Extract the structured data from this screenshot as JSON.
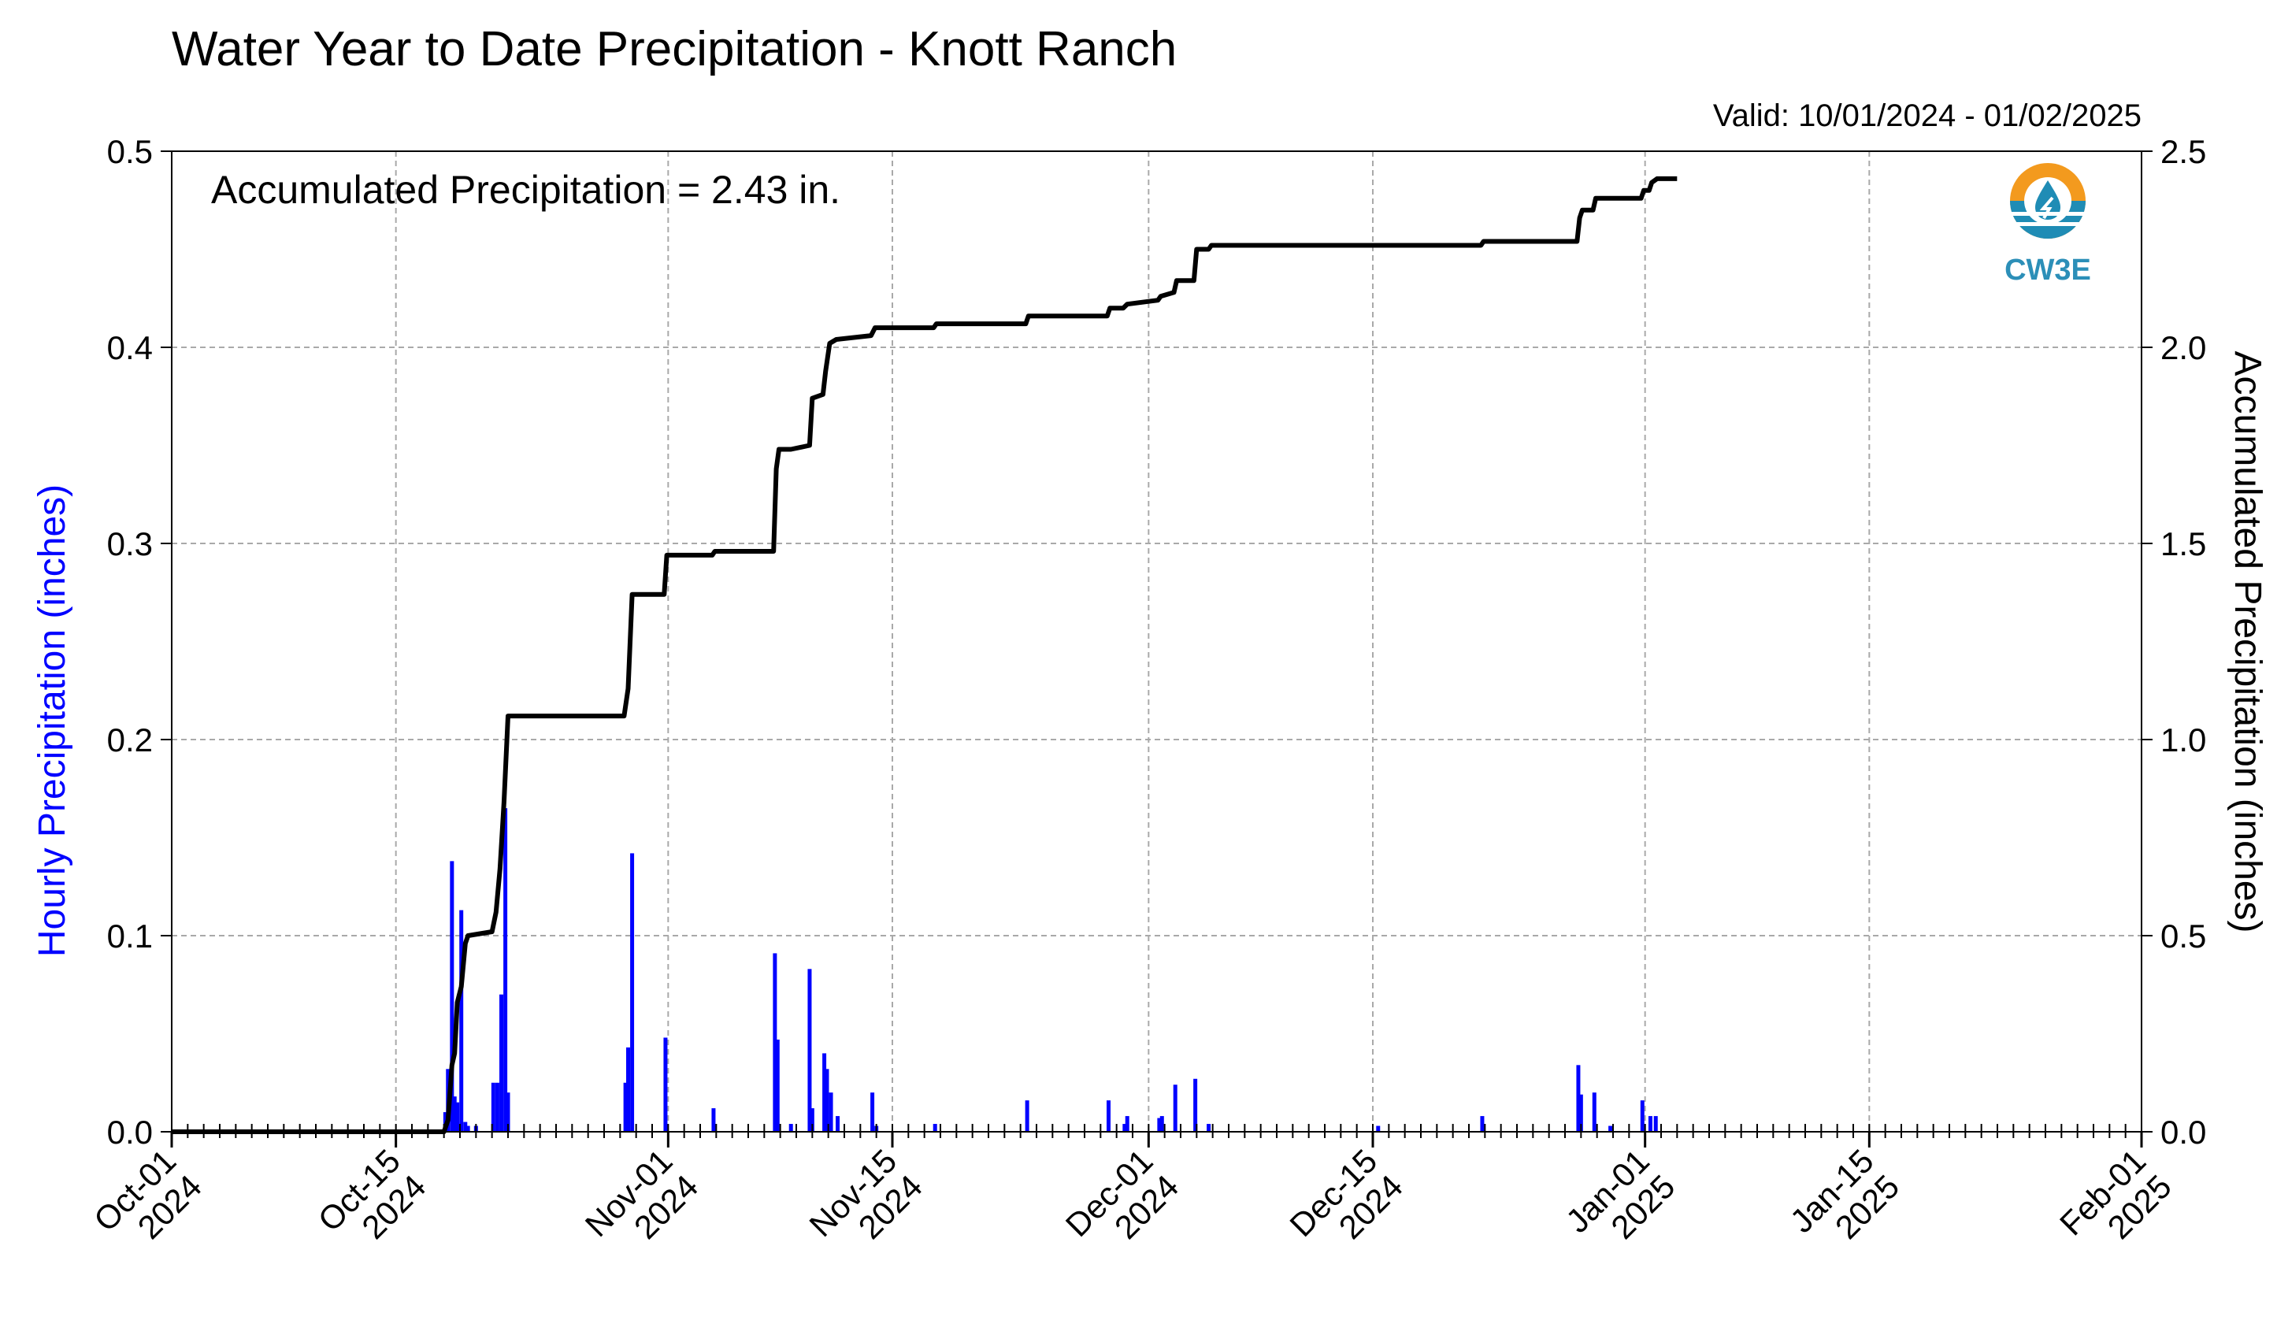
{
  "chart_data": {
    "type": "bar",
    "title": "Water Year to Date Precipitation - Knott Ranch",
    "valid_label": "Valid: 10/01/2024 - 01/02/2025",
    "annotation": "Accumulated Precipitation = 2.43 in.",
    "ylabel_left": "Hourly Precipitation (inches)",
    "ylabel_right": "Accumulated Precipitation (inches)",
    "ylim_left": [
      0,
      0.5
    ],
    "ylim_right": [
      0,
      2.5
    ],
    "yticks_left": [
      "0.0",
      "0.1",
      "0.2",
      "0.3",
      "0.4",
      "0.5"
    ],
    "yticks_right": [
      "0.0",
      "0.5",
      "1.0",
      "1.5",
      "2.0",
      "2.5"
    ],
    "xlim": [
      "2024-10-01",
      "2025-02-01"
    ],
    "xticks": [
      {
        "date": "2024-10-01",
        "label1": "Oct-01",
        "label2": "2024"
      },
      {
        "date": "2024-10-15",
        "label1": "Oct-15",
        "label2": "2024"
      },
      {
        "date": "2024-11-01",
        "label1": "Nov-01",
        "label2": "2024"
      },
      {
        "date": "2024-11-15",
        "label1": "Nov-15",
        "label2": "2024"
      },
      {
        "date": "2024-12-01",
        "label1": "Dec-01",
        "label2": "2024"
      },
      {
        "date": "2024-12-15",
        "label1": "Dec-15",
        "label2": "2024"
      },
      {
        "date": "2025-01-01",
        "label1": "Jan-01",
        "label2": "2025"
      },
      {
        "date": "2025-01-15",
        "label1": "Jan-15",
        "label2": "2025"
      },
      {
        "date": "2025-02-01",
        "label1": "Feb-01",
        "label2": "2025"
      }
    ],
    "grid": true,
    "series": [
      {
        "type": "bar",
        "axis": "left",
        "color": "#0000ff",
        "points": [
          {
            "x": "2024-10-18 02:00",
            "y": 0.01
          },
          {
            "x": "2024-10-18 06:00",
            "y": 0.032
          },
          {
            "x": "2024-10-18 12:00",
            "y": 0.138
          },
          {
            "x": "2024-10-18 16:00",
            "y": 0.018
          },
          {
            "x": "2024-10-18 20:00",
            "y": 0.015
          },
          {
            "x": "2024-10-19 02:00",
            "y": 0.113
          },
          {
            "x": "2024-10-19 08:00",
            "y": 0.005
          },
          {
            "x": "2024-10-19 12:00",
            "y": 0.003
          },
          {
            "x": "2024-10-20 00:00",
            "y": 0.003
          },
          {
            "x": "2024-10-21 02:00",
            "y": 0.025
          },
          {
            "x": "2024-10-21 08:00",
            "y": 0.025
          },
          {
            "x": "2024-10-21 14:00",
            "y": 0.07
          },
          {
            "x": "2024-10-21 20:00",
            "y": 0.165
          },
          {
            "x": "2024-10-22 00:00",
            "y": 0.02
          },
          {
            "x": "2024-10-29 08:00",
            "y": 0.025
          },
          {
            "x": "2024-10-29 12:00",
            "y": 0.043
          },
          {
            "x": "2024-10-29 18:00",
            "y": 0.142
          },
          {
            "x": "2024-10-31 20:00",
            "y": 0.048
          },
          {
            "x": "2024-11-03 20:00",
            "y": 0.012
          },
          {
            "x": "2024-11-07 16:00",
            "y": 0.091
          },
          {
            "x": "2024-11-07 20:00",
            "y": 0.047
          },
          {
            "x": "2024-11-08 16:00",
            "y": 0.004
          },
          {
            "x": "2024-11-09 20:00",
            "y": 0.083
          },
          {
            "x": "2024-11-10 00:00",
            "y": 0.012
          },
          {
            "x": "2024-11-10 18:00",
            "y": 0.04
          },
          {
            "x": "2024-11-10 22:00",
            "y": 0.032
          },
          {
            "x": "2024-11-11 04:00",
            "y": 0.02
          },
          {
            "x": "2024-11-11 14:00",
            "y": 0.008
          },
          {
            "x": "2024-11-13 18:00",
            "y": 0.02
          },
          {
            "x": "2024-11-14 00:00",
            "y": 0.003
          },
          {
            "x": "2024-11-17 16:00",
            "y": 0.004
          },
          {
            "x": "2024-11-23 10:00",
            "y": 0.016
          },
          {
            "x": "2024-11-28 12:00",
            "y": 0.016
          },
          {
            "x": "2024-11-29 12:00",
            "y": 0.004
          },
          {
            "x": "2024-11-29 16:00",
            "y": 0.008
          },
          {
            "x": "2024-12-01 16:00",
            "y": 0.007
          },
          {
            "x": "2024-12-01 20:00",
            "y": 0.008
          },
          {
            "x": "2024-12-02 16:00",
            "y": 0.024
          },
          {
            "x": "2024-12-03 22:00",
            "y": 0.027
          },
          {
            "x": "2024-12-04 18:00",
            "y": 0.004
          },
          {
            "x": "2024-12-15 08:00",
            "y": 0.003
          },
          {
            "x": "2024-12-21 20:00",
            "y": 0.008
          },
          {
            "x": "2024-12-27 20:00",
            "y": 0.034
          },
          {
            "x": "2024-12-28 00:00",
            "y": 0.019
          },
          {
            "x": "2024-12-28 20:00",
            "y": 0.02
          },
          {
            "x": "2024-12-29 20:00",
            "y": 0.003
          },
          {
            "x": "2024-12-31 20:00",
            "y": 0.016
          },
          {
            "x": "2025-01-01 08:00",
            "y": 0.008
          },
          {
            "x": "2025-01-01 16:00",
            "y": 0.008
          }
        ]
      },
      {
        "type": "line",
        "axis": "right",
        "color": "#000000",
        "points": [
          [
            "2024-10-01 00:00",
            0.0
          ],
          [
            "2024-10-18 00:00",
            0.0
          ],
          [
            "2024-10-18 06:00",
            0.03
          ],
          [
            "2024-10-18 12:00",
            0.17
          ],
          [
            "2024-10-18 16:00",
            0.2
          ],
          [
            "2024-10-18 20:00",
            0.33
          ],
          [
            "2024-10-19 02:00",
            0.37
          ],
          [
            "2024-10-19 08:00",
            0.48
          ],
          [
            "2024-10-19 12:00",
            0.5
          ],
          [
            "2024-10-21 00:00",
            0.51
          ],
          [
            "2024-10-21 06:00",
            0.56
          ],
          [
            "2024-10-21 12:00",
            0.67
          ],
          [
            "2024-10-21 18:00",
            0.84
          ],
          [
            "2024-10-22 00:00",
            1.06
          ],
          [
            "2024-10-29 06:00",
            1.06
          ],
          [
            "2024-10-29 12:00",
            1.13
          ],
          [
            "2024-10-29 18:00",
            1.37
          ],
          [
            "2024-10-31 18:00",
            1.37
          ],
          [
            "2024-10-31 22:00",
            1.47
          ],
          [
            "2024-11-03 18:00",
            1.47
          ],
          [
            "2024-11-03 22:00",
            1.48
          ],
          [
            "2024-11-07 14:00",
            1.48
          ],
          [
            "2024-11-07 18:00",
            1.69
          ],
          [
            "2024-11-07 22:00",
            1.74
          ],
          [
            "2024-11-08 16:00",
            1.74
          ],
          [
            "2024-11-09 20:00",
            1.75
          ],
          [
            "2024-11-10 00:00",
            1.87
          ],
          [
            "2024-11-10 16:00",
            1.88
          ],
          [
            "2024-11-10 20:00",
            1.94
          ],
          [
            "2024-11-11 02:00",
            2.01
          ],
          [
            "2024-11-11 12:00",
            2.02
          ],
          [
            "2024-11-13 16:00",
            2.03
          ],
          [
            "2024-11-13 22:00",
            2.05
          ],
          [
            "2024-11-17 14:00",
            2.05
          ],
          [
            "2024-11-17 18:00",
            2.06
          ],
          [
            "2024-11-23 08:00",
            2.06
          ],
          [
            "2024-11-23 12:00",
            2.08
          ],
          [
            "2024-11-28 10:00",
            2.08
          ],
          [
            "2024-11-28 14:00",
            2.1
          ],
          [
            "2024-11-29 10:00",
            2.1
          ],
          [
            "2024-11-29 16:00",
            2.11
          ],
          [
            "2024-12-01 14:00",
            2.12
          ],
          [
            "2024-12-01 18:00",
            2.13
          ],
          [
            "2024-12-02 14:00",
            2.14
          ],
          [
            "2024-12-02 18:00",
            2.17
          ],
          [
            "2024-12-03 20:00",
            2.17
          ],
          [
            "2024-12-04 00:00",
            2.25
          ],
          [
            "2024-12-04 18:00",
            2.25
          ],
          [
            "2024-12-04 22:00",
            2.26
          ],
          [
            "2024-12-15 08:00",
            2.26
          ],
          [
            "2024-12-15 12:00",
            2.26
          ],
          [
            "2024-12-21 18:00",
            2.26
          ],
          [
            "2024-12-21 22:00",
            2.27
          ],
          [
            "2024-12-27 18:00",
            2.27
          ],
          [
            "2024-12-27 22:00",
            2.33
          ],
          [
            "2024-12-28 02:00",
            2.35
          ],
          [
            "2024-12-28 18:00",
            2.35
          ],
          [
            "2024-12-28 22:00",
            2.38
          ],
          [
            "2024-12-31 18:00",
            2.38
          ],
          [
            "2024-12-31 22:00",
            2.4
          ],
          [
            "2025-01-01 06:00",
            2.4
          ],
          [
            "2025-01-01 10:00",
            2.42
          ],
          [
            "2025-01-01 18:00",
            2.43
          ],
          [
            "2025-01-03 00:00",
            2.43
          ]
        ]
      }
    ]
  },
  "logo": {
    "text": "CW3E",
    "colors": {
      "sun": "#f39a1e",
      "water": "#1f8cb5",
      "text": "#2c8fb8"
    }
  }
}
